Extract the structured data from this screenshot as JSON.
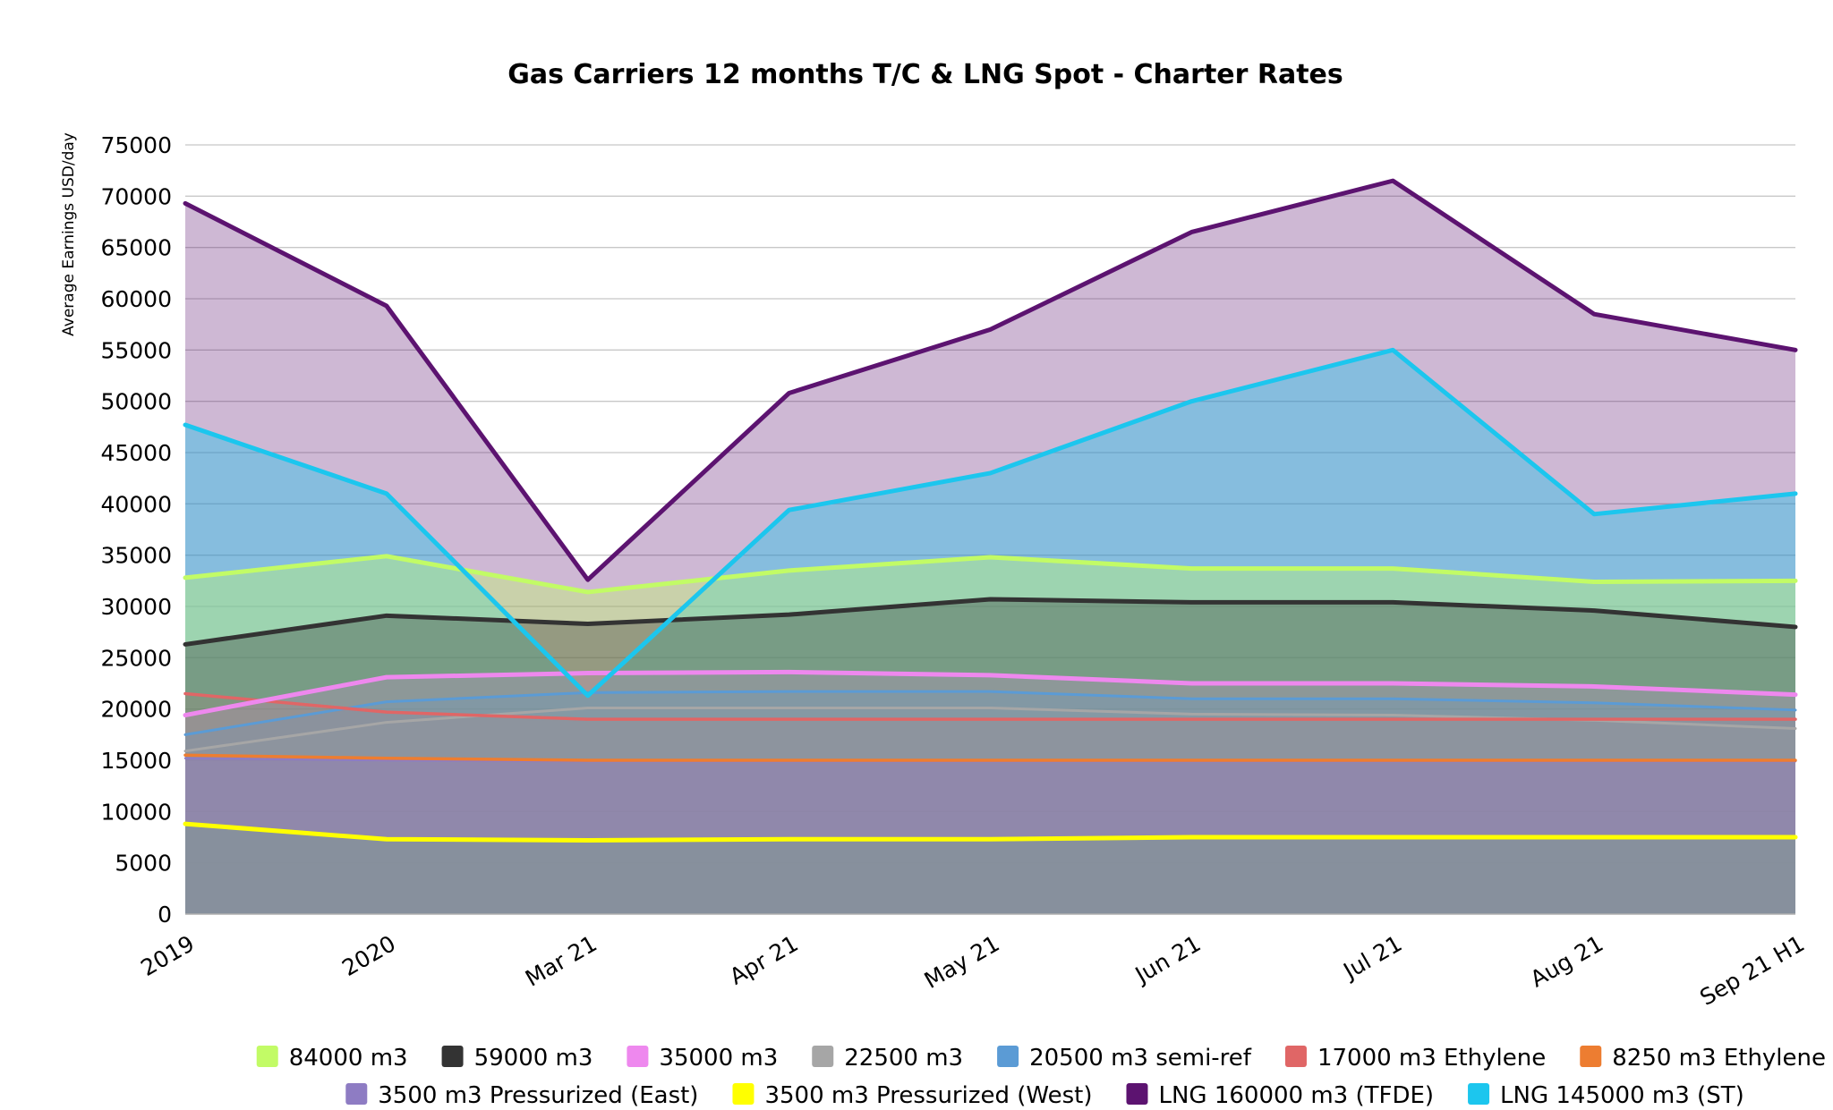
{
  "chart_data": {
    "type": "area",
    "title": "Gas Carriers 12 months T/C & LNG Spot - Charter Rates",
    "ylabel": "Average Earnings USD/day",
    "xlabel": "",
    "ylim": [
      0,
      75000
    ],
    "yticks": [
      0,
      5000,
      10000,
      15000,
      20000,
      25000,
      30000,
      35000,
      40000,
      45000,
      50000,
      55000,
      60000,
      65000,
      70000,
      75000
    ],
    "grid": true,
    "legend_position": "bottom",
    "categories": [
      "2019",
      "2020",
      "Mar 21",
      "Apr 21",
      "May 21",
      "Jun 21",
      "Jul 21",
      "Aug 21",
      "Sep 21 H1"
    ],
    "series": [
      {
        "name": "84000 m3",
        "color": "#C2FB66",
        "values": [
          32800,
          34900,
          31400,
          33500,
          34800,
          33700,
          33700,
          32400,
          32500
        ]
      },
      {
        "name": "59000 m3",
        "color": "#333333",
        "values": [
          26300,
          29100,
          28300,
          29200,
          30700,
          30400,
          30400,
          29600,
          28000
        ]
      },
      {
        "name": "35000 m3",
        "color": "#EE88EE",
        "values": [
          19400,
          23100,
          23500,
          23600,
          23300,
          22500,
          22500,
          22200,
          21400
        ]
      },
      {
        "name": "22500 m3",
        "color": "#A6A6A6",
        "values": [
          15900,
          18700,
          20100,
          20100,
          20100,
          19500,
          19400,
          18900,
          18100
        ]
      },
      {
        "name": "20500 m3 semi-ref",
        "color": "#5B9BD5",
        "values": [
          17500,
          20700,
          21600,
          21700,
          21700,
          21000,
          21000,
          20600,
          19900
        ]
      },
      {
        "name": "17000 m3 Ethylene",
        "color": "#E06666",
        "values": [
          21500,
          19700,
          19000,
          19000,
          19000,
          19000,
          19000,
          19000,
          19000
        ]
      },
      {
        "name": "8250 m3 Ethylene",
        "color": "#ED7D31",
        "values": [
          15500,
          15200,
          15000,
          15000,
          15000,
          15000,
          15000,
          15000,
          15000
        ]
      },
      {
        "name": "3500 m3 Pressurized (East)",
        "color": "#8E7CC3",
        "values": [
          15200,
          15000,
          14900,
          14900,
          14900,
          14900,
          14900,
          14900,
          14900
        ]
      },
      {
        "name": "3500 m3 Pressurized (West)",
        "color": "#FFFF00",
        "values": [
          8800,
          7300,
          7200,
          7300,
          7300,
          7500,
          7500,
          7500,
          7500
        ]
      },
      {
        "name": "LNG 160000 m3 (TFDE)",
        "color": "#5C1370",
        "values": [
          69300,
          59300,
          32600,
          50800,
          57000,
          66500,
          71500,
          58500,
          55000
        ]
      },
      {
        "name": "LNG 145000 m3 (ST)",
        "color": "#1CC6EE",
        "values": [
          47700,
          41000,
          21300,
          39400,
          43000,
          50000,
          55000,
          39000,
          41000
        ]
      }
    ]
  }
}
